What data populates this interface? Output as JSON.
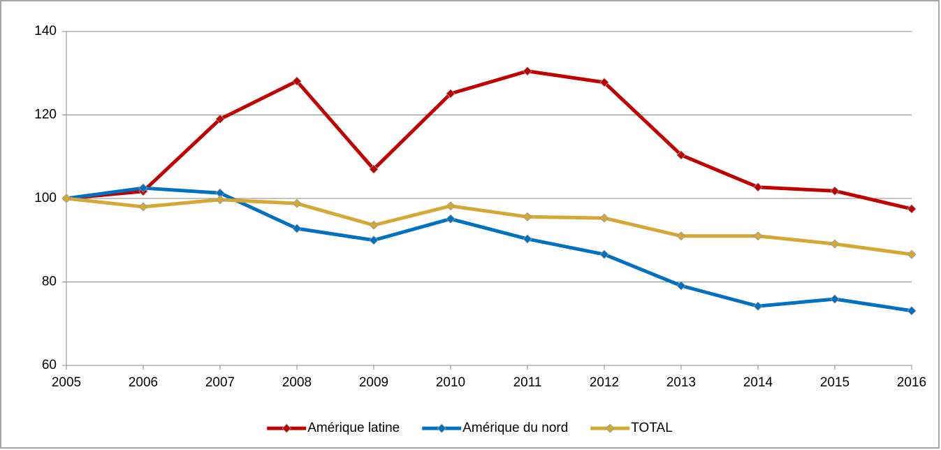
{
  "chart_data": {
    "type": "line",
    "x": [
      2005,
      2006,
      2007,
      2008,
      2009,
      2010,
      2011,
      2012,
      2013,
      2014,
      2015,
      2016
    ],
    "xlim": [
      2005,
      2016
    ],
    "xticks": [
      2005,
      2006,
      2007,
      2008,
      2009,
      2010,
      2011,
      2012,
      2013,
      2014,
      2015,
      2016
    ],
    "ylim": [
      60,
      140
    ],
    "yticks": [
      60,
      80,
      100,
      120,
      140
    ],
    "grid": true,
    "legend": "bottom",
    "series": [
      {
        "name": "Amérique latine",
        "color": "#c00000",
        "values": [
          100,
          101.7,
          119,
          128.1,
          107,
          125.1,
          130.5,
          127.8,
          110.4,
          102.7,
          101.8,
          97.5
        ]
      },
      {
        "name": "Amérique du nord",
        "color": "#0070c0",
        "values": [
          100,
          102.5,
          101.3,
          92.8,
          90,
          95.1,
          90.3,
          86.6,
          79.1,
          74.2,
          75.9,
          73.1
        ]
      },
      {
        "name": "TOTAL",
        "color": "#d4a835",
        "values": [
          100,
          98,
          99.7,
          98.8,
          93.6,
          98.2,
          95.6,
          95.3,
          91,
          91,
          89.1,
          86.6
        ]
      }
    ]
  }
}
